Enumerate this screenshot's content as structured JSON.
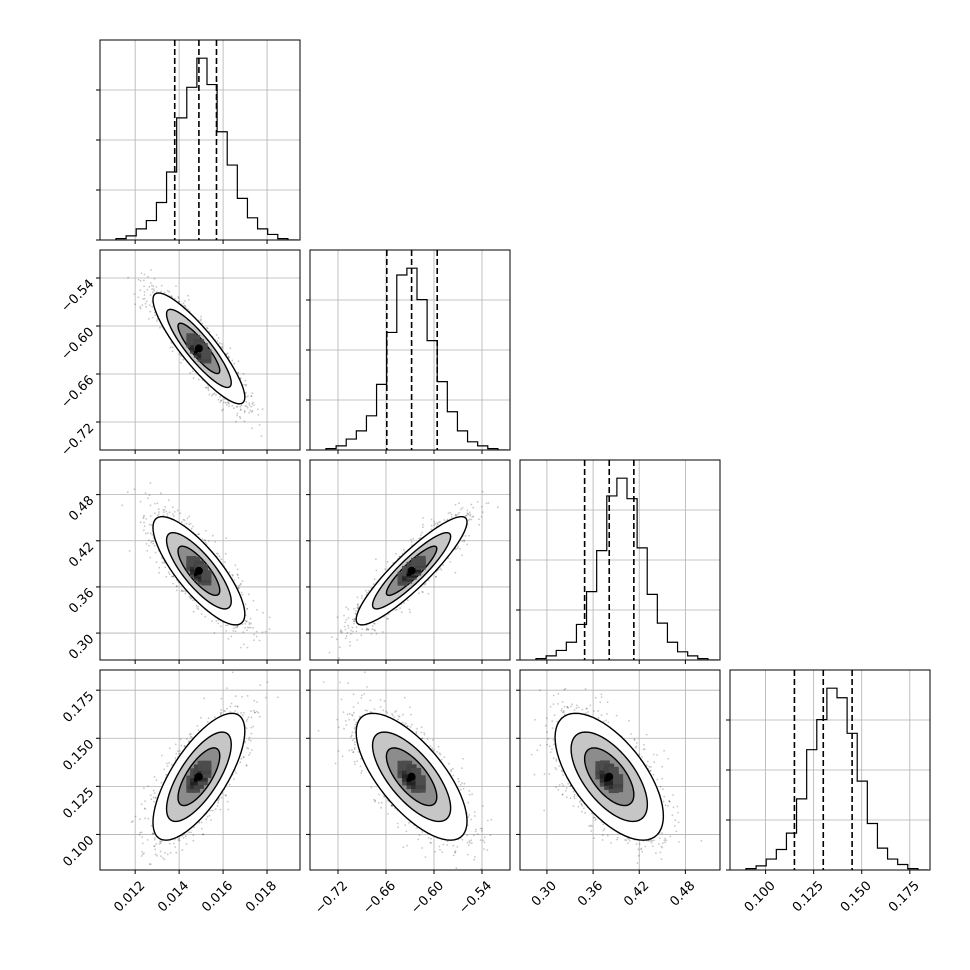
{
  "chart_data": {
    "type": "corner",
    "params": [
      {
        "ticks": [
          0.012,
          0.014,
          0.016,
          0.018
        ],
        "tick_labels": [
          "0.012",
          "0.014",
          "0.016",
          "0.018"
        ],
        "range": [
          0.0104,
          0.0195
        ],
        "quantiles": [
          0.0138,
          0.0149,
          0.0157
        ]
      },
      {
        "ticks": [
          -0.72,
          -0.66,
          -0.6,
          -0.54
        ],
        "tick_labels": [
          "−0.72",
          "−0.66",
          "−0.60",
          "−0.54"
        ],
        "range": [
          -0.755,
          -0.505
        ],
        "quantiles": [
          -0.659,
          -0.628,
          -0.596
        ]
      },
      {
        "ticks": [
          0.3,
          0.36,
          0.42,
          0.48
        ],
        "tick_labels": [
          "0.30",
          "0.36",
          "0.42",
          "0.48"
        ],
        "range": [
          0.265,
          0.525
        ],
        "quantiles": [
          0.349,
          0.381,
          0.413
        ]
      },
      {
        "ticks": [
          0.1,
          0.125,
          0.15,
          0.175
        ],
        "tick_labels": [
          "0.100",
          "0.125",
          "0.150",
          "0.175"
        ],
        "range": [
          0.0815,
          0.1855
        ],
        "quantiles": [
          0.115,
          0.13,
          0.145
        ]
      }
    ],
    "hist_counts": [
      [
        1,
        3,
        8,
        14,
        27,
        49,
        88,
        110,
        131,
        112,
        78,
        54,
        30,
        16,
        8,
        4,
        1,
        0
      ],
      [
        1,
        3,
        8,
        14,
        25,
        48,
        86,
        128,
        133,
        110,
        80,
        50,
        28,
        14,
        6,
        3,
        1,
        0
      ],
      [
        1,
        3,
        7,
        13,
        26,
        50,
        80,
        120,
        133,
        118,
        82,
        48,
        27,
        13,
        6,
        3,
        1,
        0
      ],
      [
        1,
        3,
        8,
        15,
        27,
        52,
        88,
        110,
        133,
        126,
        100,
        65,
        34,
        16,
        8,
        4,
        1,
        0
      ]
    ],
    "correlations": [
      [
        1.0,
        -0.88,
        -0.8,
        0.72
      ],
      [
        -0.88,
        1.0,
        0.9,
        -0.7
      ],
      [
        -0.8,
        0.9,
        1.0,
        -0.62
      ],
      [
        0.72,
        -0.7,
        -0.62,
        1.0
      ]
    ],
    "quantile_levels": [
      0.16,
      0.5,
      0.84
    ],
    "contour_levels": [
      0.5,
      1.0,
      1.5,
      2.0
    ],
    "grid": true,
    "title": "",
    "axis_labels": []
  }
}
